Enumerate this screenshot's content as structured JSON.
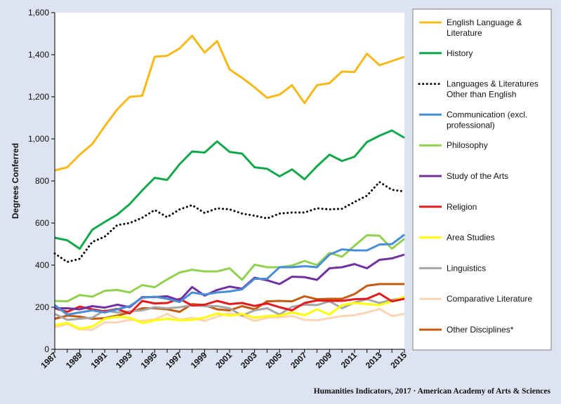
{
  "chart_data": {
    "type": "line",
    "title": "",
    "xlabel": "",
    "ylabel": "Degrees Conferred",
    "ylim": [
      0,
      1600
    ],
    "yticks": [
      "0",
      "200",
      "400",
      "600",
      "800",
      "1,000",
      "1,200",
      "1,400",
      "1,600"
    ],
    "xticks": [
      "1987",
      "1989",
      "1991",
      "1993",
      "1995",
      "1997",
      "1999",
      "2001",
      "2003",
      "2005",
      "2007",
      "2009",
      "2011",
      "2013",
      "2015"
    ],
    "x": [
      1987,
      1988,
      1989,
      1990,
      1991,
      1992,
      1993,
      1994,
      1995,
      1996,
      1997,
      1998,
      1999,
      2000,
      2001,
      2002,
      2003,
      2004,
      2005,
      2006,
      2007,
      2008,
      2009,
      2010,
      2011,
      2012,
      2013,
      2014,
      2015
    ],
    "grid": false,
    "legend_position": "right",
    "series": [
      {
        "name": "English Language & Literature",
        "color": "#f7b918",
        "style": "solid",
        "values": [
          850,
          865,
          925,
          975,
          1060,
          1140,
          1200,
          1205,
          1390,
          1395,
          1430,
          1490,
          1410,
          1465,
          1330,
          1290,
          1245,
          1195,
          1210,
          1255,
          1170,
          1255,
          1265,
          1320,
          1318,
          1405,
          1350,
          1370,
          1390
        ]
      },
      {
        "name": "History",
        "color": "#10a84a",
        "style": "solid",
        "values": [
          530,
          518,
          478,
          568,
          605,
          640,
          690,
          755,
          815,
          805,
          880,
          940,
          935,
          988,
          938,
          930,
          865,
          858,
          822,
          855,
          808,
          870,
          925,
          895,
          915,
          985,
          1015,
          1040,
          1005
        ]
      },
      {
        "name": "Languages & Literatures Other than English",
        "color": "#000000",
        "style": "dotted",
        "values": [
          455,
          415,
          430,
          510,
          535,
          590,
          600,
          625,
          662,
          628,
          665,
          685,
          648,
          670,
          665,
          645,
          635,
          622,
          645,
          650,
          650,
          670,
          665,
          668,
          700,
          730,
          795,
          758,
          750
        ]
      },
      {
        "name": "Communication (excl. professional)",
        "color": "#4a8ed8",
        "style": "solid",
        "values": [
          210,
          165,
          175,
          185,
          175,
          190,
          205,
          245,
          250,
          240,
          225,
          270,
          260,
          270,
          275,
          285,
          335,
          335,
          390,
          390,
          395,
          390,
          450,
          475,
          470,
          470,
          498,
          500,
          545
        ]
      },
      {
        "name": "Philosophy",
        "color": "#92d050",
        "style": "solid",
        "values": [
          230,
          228,
          258,
          250,
          278,
          282,
          270,
          305,
          295,
          332,
          365,
          378,
          370,
          370,
          385,
          330,
          402,
          390,
          390,
          398,
          420,
          400,
          458,
          440,
          492,
          542,
          540,
          478,
          525
        ]
      },
      {
        "name": "Study of the Arts",
        "color": "#7030a0",
        "style": "solid",
        "values": [
          195,
          195,
          190,
          205,
          198,
          212,
          200,
          248,
          248,
          252,
          232,
          296,
          255,
          282,
          298,
          288,
          340,
          328,
          310,
          345,
          343,
          330,
          385,
          390,
          405,
          385,
          425,
          432,
          450
        ]
      },
      {
        "name": "Religion",
        "color": "#e41a1c",
        "style": "solid",
        "values": [
          195,
          178,
          203,
          190,
          180,
          192,
          170,
          230,
          218,
          220,
          240,
          208,
          212,
          230,
          215,
          220,
          206,
          218,
          200,
          185,
          220,
          232,
          230,
          230,
          238,
          240,
          265,
          228,
          240
        ]
      },
      {
        "name": "Area Studies",
        "color": "#ffff00",
        "style": "solid",
        "values": [
          115,
          125,
          98,
          108,
          145,
          155,
          150,
          125,
          138,
          145,
          138,
          140,
          150,
          170,
          160,
          168,
          150,
          158,
          160,
          175,
          162,
          190,
          165,
          210,
          220,
          215,
          210,
          228,
          250
        ]
      },
      {
        "name": "Linguistics",
        "color": "#a6a6a6",
        "style": "solid",
        "values": [
          168,
          140,
          145,
          150,
          185,
          175,
          180,
          185,
          200,
          195,
          200,
          210,
          205,
          205,
          195,
          160,
          185,
          195,
          165,
          202,
          212,
          210,
          228,
          195,
          222,
          238,
          220,
          235,
          245
        ]
      },
      {
        "name": "Comparative Literature",
        "color": "#fbd5b5",
        "style": "solid",
        "values": [
          105,
          120,
          95,
          92,
          128,
          128,
          140,
          135,
          142,
          168,
          140,
          150,
          135,
          155,
          172,
          158,
          135,
          150,
          152,
          158,
          140,
          138,
          148,
          158,
          162,
          175,
          192,
          158,
          168
        ]
      },
      {
        "name": "Other Disciplines*",
        "color": "#c55a11",
        "style": "solid",
        "values": [
          145,
          160,
          155,
          145,
          148,
          160,
          175,
          195,
          195,
          190,
          178,
          215,
          210,
          190,
          185,
          205,
          190,
          228,
          230,
          228,
          252,
          238,
          240,
          240,
          262,
          302,
          310,
          310,
          310
        ]
      }
    ]
  },
  "legend_lines": {
    "English Language & Literature": [
      "English Language &",
      "Literature"
    ],
    "Languages & Literatures Other than English": [
      "Languages & Literatures",
      "Other than English"
    ],
    "Communication (excl. professional)": [
      "Communication (excl.",
      "professional)"
    ]
  },
  "footer": {
    "credit": "Humanities  Indicators, 2017 · American Academy of Arts & Sciences"
  }
}
